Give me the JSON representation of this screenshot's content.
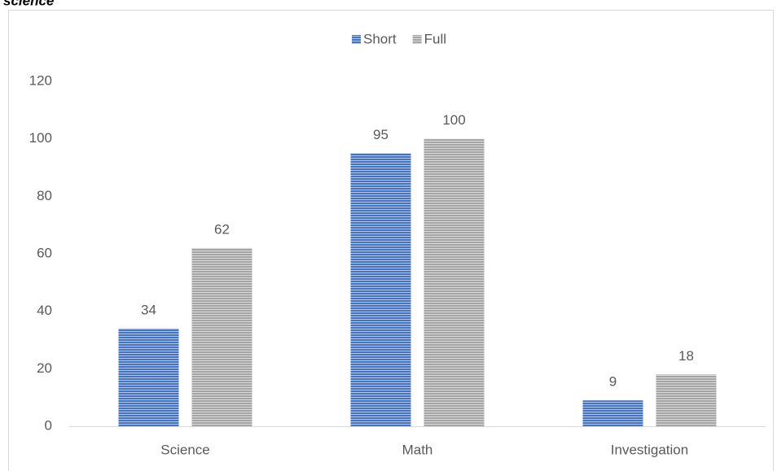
{
  "caption": "science",
  "chart_data": {
    "type": "bar",
    "categories": [
      "Science",
      "Math",
      "Investigation"
    ],
    "series": [
      {
        "name": "Short",
        "color": "#4472c4",
        "values": [
          34,
          95,
          9
        ]
      },
      {
        "name": "Full",
        "color": "#a5a5a5",
        "values": [
          62,
          100,
          18
        ]
      }
    ],
    "ylim": [
      0,
      120
    ],
    "yticks": [
      0,
      20,
      40,
      60,
      80,
      100,
      120
    ],
    "grid": false,
    "legend": "top"
  }
}
